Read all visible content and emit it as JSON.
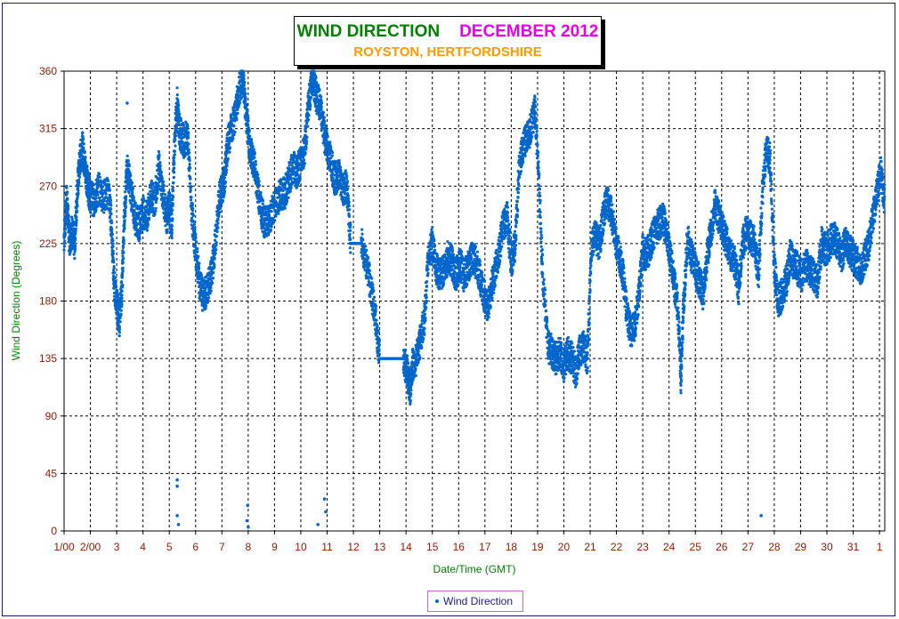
{
  "chart_data": {
    "type": "scatter",
    "title": "WIND DIRECTION",
    "title_month": "DECEMBER 2012",
    "subtitle": "ROYSTON, HERTFORDSHIRE",
    "xlabel": "Date/Time (GMT)",
    "ylabel": "Wind Direction (Degrees)",
    "ylim": [
      0,
      360
    ],
    "xlim": [
      1,
      32.2
    ],
    "yticks": [
      "0",
      "45",
      "90",
      "135",
      "180",
      "225",
      "270",
      "315",
      "360"
    ],
    "xticks": [
      {
        "value": 1,
        "label": "1/00"
      },
      {
        "value": 2,
        "label": "2/00"
      },
      {
        "value": 3,
        "label": "3"
      },
      {
        "value": 4,
        "label": "4"
      },
      {
        "value": 5,
        "label": "5"
      },
      {
        "value": 6,
        "label": "6"
      },
      {
        "value": 7,
        "label": "7"
      },
      {
        "value": 8,
        "label": "8"
      },
      {
        "value": 9,
        "label": "9"
      },
      {
        "value": 10,
        "label": "10"
      },
      {
        "value": 11,
        "label": "11"
      },
      {
        "value": 12,
        "label": "12"
      },
      {
        "value": 13,
        "label": "13"
      },
      {
        "value": 14,
        "label": "14"
      },
      {
        "value": 15,
        "label": "15"
      },
      {
        "value": 16,
        "label": "16"
      },
      {
        "value": 17,
        "label": "17"
      },
      {
        "value": 18,
        "label": "18"
      },
      {
        "value": 19,
        "label": "19"
      },
      {
        "value": 20,
        "label": "20"
      },
      {
        "value": 21,
        "label": "21"
      },
      {
        "value": 22,
        "label": "22"
      },
      {
        "value": 23,
        "label": "23"
      },
      {
        "value": 24,
        "label": "24"
      },
      {
        "value": 25,
        "label": "25"
      },
      {
        "value": 26,
        "label": "26"
      },
      {
        "value": 27,
        "label": "27"
      },
      {
        "value": 28,
        "label": "28"
      },
      {
        "value": 29,
        "label": "29"
      },
      {
        "value": 30,
        "label": "30"
      },
      {
        "value": 31,
        "label": "31"
      },
      {
        "value": 32,
        "label": "1"
      }
    ],
    "grid": true,
    "legend_position": "bottom-center",
    "series": [
      {
        "name": "Wind Direction",
        "color": "#0066cc",
        "points": [
          [
            1.0,
            230
          ],
          [
            1.1,
            262
          ],
          [
            1.2,
            228
          ],
          [
            1.3,
            235
          ],
          [
            1.4,
            225
          ],
          [
            1.5,
            265
          ],
          [
            1.6,
            290
          ],
          [
            1.7,
            300
          ],
          [
            1.8,
            285
          ],
          [
            1.9,
            270
          ],
          [
            2.0,
            262
          ],
          [
            2.15,
            258
          ],
          [
            2.3,
            268
          ],
          [
            2.5,
            262
          ],
          [
            2.7,
            265
          ],
          [
            2.8,
            240
          ],
          [
            2.9,
            195
          ],
          [
            3.0,
            178
          ],
          [
            3.1,
            165
          ],
          [
            3.2,
            190
          ],
          [
            3.3,
            250
          ],
          [
            3.4,
            285
          ],
          [
            3.55,
            265
          ],
          [
            3.7,
            245
          ],
          [
            3.85,
            240
          ],
          [
            4.0,
            250
          ],
          [
            4.15,
            245
          ],
          [
            4.3,
            262
          ],
          [
            4.45,
            258
          ],
          [
            4.6,
            285
          ],
          [
            4.75,
            265
          ],
          [
            4.9,
            245
          ],
          [
            5.0,
            255
          ],
          [
            5.1,
            240
          ],
          [
            5.2,
            305
          ],
          [
            5.3,
            335
          ],
          [
            5.4,
            312
          ],
          [
            5.55,
            305
          ],
          [
            5.7,
            310
          ],
          [
            5.85,
            250
          ],
          [
            6.0,
            220
          ],
          [
            6.15,
            195
          ],
          [
            6.3,
            182
          ],
          [
            6.45,
            190
          ],
          [
            6.6,
            200
          ],
          [
            6.75,
            225
          ],
          [
            6.9,
            260
          ],
          [
            7.0,
            268
          ],
          [
            7.1,
            275
          ],
          [
            7.2,
            300
          ],
          [
            7.35,
            315
          ],
          [
            7.5,
            325
          ],
          [
            7.65,
            345
          ],
          [
            7.8,
            355
          ],
          [
            7.9,
            330
          ],
          [
            8.0,
            310
          ],
          [
            8.1,
            295
          ],
          [
            8.2,
            290
          ],
          [
            8.35,
            270
          ],
          [
            8.5,
            250
          ],
          [
            8.65,
            240
          ],
          [
            8.8,
            245
          ],
          [
            9.0,
            255
          ],
          [
            9.2,
            262
          ],
          [
            9.4,
            265
          ],
          [
            9.55,
            275
          ],
          [
            9.7,
            285
          ],
          [
            9.85,
            280
          ],
          [
            10.0,
            290
          ],
          [
            10.15,
            300
          ],
          [
            10.3,
            335
          ],
          [
            10.45,
            355
          ],
          [
            10.6,
            340
          ],
          [
            10.75,
            330
          ],
          [
            10.9,
            310
          ],
          [
            11.0,
            300
          ],
          [
            11.15,
            290
          ],
          [
            11.3,
            275
          ],
          [
            11.45,
            280
          ],
          [
            11.6,
            268
          ],
          [
            11.75,
            270
          ],
          [
            11.9,
            225
          ],
          [
            12.1,
            225
          ],
          [
            12.3,
            225
          ],
          [
            12.5,
            210
          ],
          [
            12.7,
            185
          ],
          [
            12.85,
            165
          ],
          [
            13.0,
            135
          ],
          [
            13.3,
            135
          ],
          [
            13.6,
            135
          ],
          [
            13.9,
            135
          ],
          [
            14.05,
            125
          ],
          [
            14.15,
            110
          ],
          [
            14.25,
            130
          ],
          [
            14.4,
            135
          ],
          [
            14.55,
            150
          ],
          [
            14.7,
            165
          ],
          [
            14.85,
            215
          ],
          [
            15.0,
            225
          ],
          [
            15.15,
            205
          ],
          [
            15.3,
            200
          ],
          [
            15.45,
            205
          ],
          [
            15.6,
            215
          ],
          [
            15.75,
            210
          ],
          [
            15.9,
            200
          ],
          [
            16.05,
            210
          ],
          [
            16.2,
            200
          ],
          [
            16.35,
            205
          ],
          [
            16.5,
            215
          ],
          [
            16.65,
            210
          ],
          [
            16.8,
            200
          ],
          [
            16.95,
            185
          ],
          [
            17.1,
            175
          ],
          [
            17.25,
            190
          ],
          [
            17.4,
            205
          ],
          [
            17.55,
            220
          ],
          [
            17.7,
            240
          ],
          [
            17.85,
            245
          ],
          [
            18.0,
            210
          ],
          [
            18.15,
            225
          ],
          [
            18.3,
            285
          ],
          [
            18.45,
            300
          ],
          [
            18.6,
            310
          ],
          [
            18.75,
            315
          ],
          [
            18.9,
            330
          ],
          [
            19.05,
            275
          ],
          [
            19.2,
            200
          ],
          [
            19.4,
            145
          ],
          [
            19.55,
            140
          ],
          [
            19.7,
            135
          ],
          [
            19.85,
            140
          ],
          [
            20.0,
            130
          ],
          [
            20.15,
            140
          ],
          [
            20.3,
            135
          ],
          [
            20.45,
            125
          ],
          [
            20.6,
            140
          ],
          [
            20.75,
            145
          ],
          [
            20.9,
            135
          ],
          [
            21.05,
            225
          ],
          [
            21.2,
            230
          ],
          [
            21.35,
            225
          ],
          [
            21.5,
            245
          ],
          [
            21.65,
            260
          ],
          [
            21.8,
            250
          ],
          [
            21.95,
            230
          ],
          [
            22.1,
            215
          ],
          [
            22.25,
            200
          ],
          [
            22.4,
            170
          ],
          [
            22.55,
            155
          ],
          [
            22.7,
            160
          ],
          [
            22.85,
            185
          ],
          [
            23.0,
            220
          ],
          [
            23.15,
            215
          ],
          [
            23.3,
            225
          ],
          [
            23.45,
            235
          ],
          [
            23.6,
            240
          ],
          [
            23.75,
            245
          ],
          [
            23.9,
            235
          ],
          [
            24.05,
            215
          ],
          [
            24.2,
            195
          ],
          [
            24.35,
            170
          ],
          [
            24.45,
            120
          ],
          [
            24.55,
            175
          ],
          [
            24.7,
            230
          ],
          [
            24.85,
            215
          ],
          [
            25.0,
            205
          ],
          [
            25.15,
            195
          ],
          [
            25.3,
            185
          ],
          [
            25.45,
            215
          ],
          [
            25.6,
            235
          ],
          [
            25.75,
            255
          ],
          [
            25.9,
            245
          ],
          [
            26.05,
            235
          ],
          [
            26.2,
            225
          ],
          [
            26.35,
            215
          ],
          [
            26.5,
            210
          ],
          [
            26.65,
            190
          ],
          [
            26.8,
            225
          ],
          [
            26.95,
            235
          ],
          [
            27.1,
            230
          ],
          [
            27.25,
            225
          ],
          [
            27.4,
            200
          ],
          [
            27.55,
            265
          ],
          [
            27.7,
            300
          ],
          [
            27.85,
            290
          ],
          [
            28.0,
            205
          ],
          [
            28.15,
            180
          ],
          [
            28.3,
            185
          ],
          [
            28.45,
            195
          ],
          [
            28.6,
            215
          ],
          [
            28.75,
            210
          ],
          [
            28.9,
            205
          ],
          [
            29.05,
            200
          ],
          [
            29.2,
            210
          ],
          [
            29.35,
            205
          ],
          [
            29.5,
            200
          ],
          [
            29.65,
            195
          ],
          [
            29.8,
            225
          ],
          [
            29.95,
            220
          ],
          [
            30.1,
            225
          ],
          [
            30.25,
            230
          ],
          [
            30.4,
            225
          ],
          [
            30.55,
            215
          ],
          [
            30.7,
            225
          ],
          [
            30.85,
            220
          ],
          [
            31.0,
            215
          ],
          [
            31.15,
            210
          ],
          [
            31.3,
            205
          ],
          [
            31.45,
            215
          ],
          [
            31.6,
            225
          ],
          [
            31.75,
            245
          ],
          [
            31.9,
            265
          ],
          [
            32.05,
            280
          ],
          [
            32.2,
            260
          ]
        ],
        "outliers": [
          [
            5.3,
            40
          ],
          [
            5.3,
            35
          ],
          [
            5.3,
            12
          ],
          [
            5.35,
            5
          ],
          [
            7.95,
            8
          ],
          [
            7.98,
            20
          ],
          [
            8.0,
            3
          ],
          [
            10.65,
            5
          ],
          [
            10.9,
            25
          ],
          [
            10.95,
            15
          ],
          [
            27.5,
            12
          ],
          [
            3.4,
            335
          ],
          [
            19.3,
            180
          ],
          [
            19.35,
            160
          ]
        ]
      }
    ]
  }
}
